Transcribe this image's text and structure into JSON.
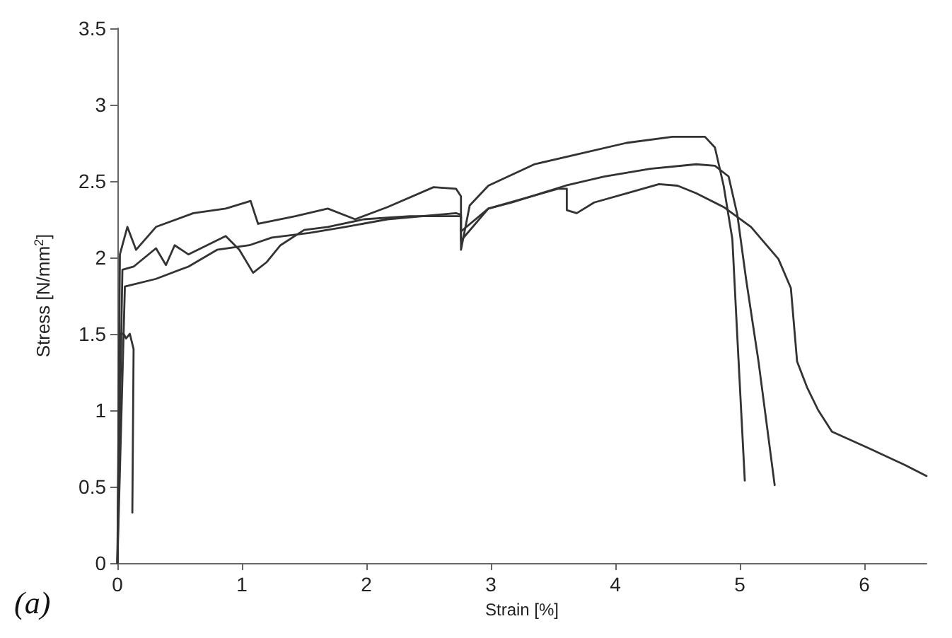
{
  "chart_data": {
    "type": "line",
    "xlabel": "Strain [%]",
    "ylabel": "Stress [N/mm$^{2}$]",
    "annotations": [
      "(a)"
    ],
    "xlim": [
      0,
      6.5
    ],
    "xticks": [
      0,
      1,
      2,
      3,
      4,
      5,
      6
    ],
    "ylim": [
      0,
      3.5
    ],
    "yticks": [
      0,
      0.5,
      1,
      1.5,
      2,
      2.5,
      3,
      3.5
    ],
    "grid": false,
    "marker": "none",
    "line_style": "solid",
    "series": [
      {
        "color": "#333333",
        "x": [
          0,
          0.02,
          0.05,
          0.07,
          0.1,
          0.13,
          0.12
        ],
        "values": [
          0,
          1.5,
          1.5,
          1.47,
          1.5,
          1.4,
          0.33
        ]
      },
      {
        "color": "#333333",
        "x": [
          0,
          0.02,
          0.08,
          0.15,
          0.31,
          0.61,
          0.87,
          1.07,
          1.13,
          1.43,
          1.69,
          1.91,
          2.17,
          2.54,
          2.72,
          2.76,
          2.76,
          2.83,
          2.98,
          3.35,
          3.72,
          4.09,
          4.46,
          4.72,
          4.8,
          4.87,
          4.94,
          4.98,
          5.04
        ],
        "values": [
          0,
          2.02,
          2.2,
          2.05,
          2.2,
          2.29,
          2.32,
          2.37,
          2.22,
          2.27,
          2.32,
          2.25,
          2.33,
          2.46,
          2.45,
          2.4,
          2.05,
          2.34,
          2.47,
          2.61,
          2.68,
          2.75,
          2.79,
          2.79,
          2.72,
          2.47,
          2.12,
          1.48,
          0.54
        ]
      },
      {
        "color": "#333333",
        "x": [
          0,
          0.04,
          0.13,
          0.31,
          0.39,
          0.46,
          0.57,
          0.72,
          0.87,
          0.98,
          1.09,
          1.2,
          1.31,
          1.5,
          1.69,
          1.98,
          2.35,
          2.76,
          2.76,
          2.98,
          3.17,
          3.6,
          3.91,
          4.28,
          4.65,
          4.8,
          4.91,
          4.98,
          5.05,
          5.15,
          5.28
        ],
        "values": [
          0,
          1.92,
          1.94,
          2.06,
          1.95,
          2.08,
          2.02,
          2.08,
          2.14,
          2.05,
          1.9,
          1.97,
          2.08,
          2.18,
          2.2,
          2.25,
          2.27,
          2.27,
          2.11,
          2.32,
          2.36,
          2.47,
          2.53,
          2.58,
          2.61,
          2.6,
          2.53,
          2.28,
          1.86,
          1.32,
          0.51
        ]
      },
      {
        "color": "#333333",
        "x": [
          0,
          0.06,
          0.31,
          0.57,
          0.8,
          1.06,
          1.24,
          1.54,
          1.83,
          2.17,
          2.72,
          2.76,
          2.76,
          2.98,
          3.54,
          3.61,
          3.61,
          3.69,
          3.83,
          4.09,
          4.35,
          4.5,
          4.65,
          4.87,
          5.09,
          5.31,
          5.41,
          5.46,
          5.54,
          5.63,
          5.74,
          6.04,
          6.33,
          6.5
        ],
        "values": [
          0,
          1.81,
          1.86,
          1.94,
          2.05,
          2.08,
          2.13,
          2.16,
          2.2,
          2.25,
          2.29,
          2.28,
          2.17,
          2.32,
          2.45,
          2.45,
          2.31,
          2.29,
          2.36,
          2.42,
          2.48,
          2.47,
          2.42,
          2.33,
          2.2,
          1.99,
          1.8,
          1.32,
          1.15,
          1.0,
          0.86,
          0.75,
          0.64,
          0.57
        ]
      }
    ]
  }
}
